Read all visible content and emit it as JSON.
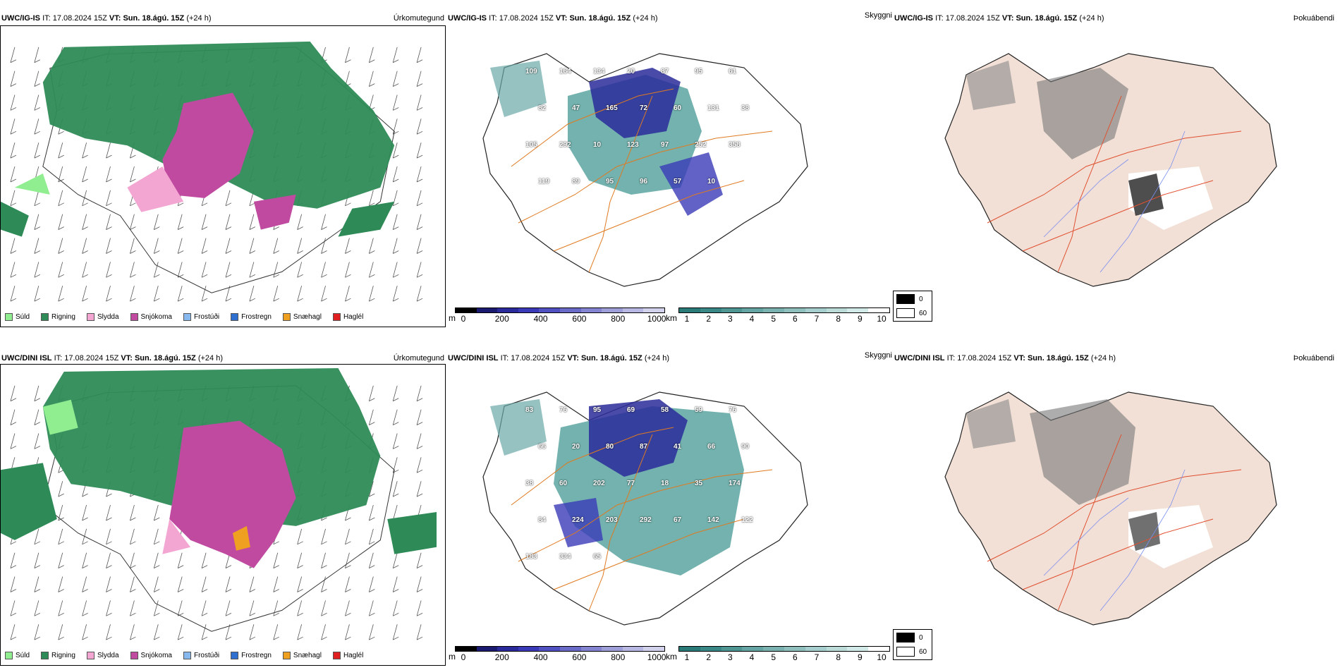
{
  "rows": [
    {
      "model": "UWC/IG-IS",
      "it_label": "IT:",
      "it_value": "17.08.2024 15Z",
      "vt_label": "VT:",
      "vt_value": "Sun. 18.ágú. 15Z",
      "lead": "(+24 h)",
      "labels_visibility": [
        "109",
        "164",
        "134",
        "20",
        "87",
        "95",
        "61",
        "82",
        "47",
        "165",
        "72",
        "60",
        "131",
        "38",
        "105",
        "292",
        "10",
        "123",
        "97",
        "252",
        "358",
        "119",
        "89",
        "95",
        "96",
        "57",
        "10"
      ]
    },
    {
      "model": "UWC/DINI ISL",
      "it_label": "IT:",
      "it_value": "17.08.2024 15Z",
      "vt_label": "VT:",
      "vt_value": "Sun. 18.ágú. 15Z",
      "lead": "(+24 h)",
      "labels_visibility": [
        "83",
        "76",
        "95",
        "69",
        "58",
        "59",
        "76",
        "66",
        "20",
        "80",
        "87",
        "41",
        "66",
        "90",
        "38",
        "60",
        "202",
        "77",
        "18",
        "35",
        "174",
        "84",
        "224",
        "203",
        "292",
        "67",
        "142",
        "122",
        "183",
        "334",
        "65"
      ]
    }
  ],
  "panel_titles": {
    "precip": "Úrkomutegund",
    "visibility": "Skyggni",
    "fog": "Þokuábendi"
  },
  "precip_legend": [
    {
      "label": "Súld",
      "color": "#90ee90"
    },
    {
      "label": "Rigning",
      "color": "#2e8b57"
    },
    {
      "label": "Slydda",
      "color": "#f4a6d2"
    },
    {
      "label": "Snjókoma",
      "color": "#c04aa0"
    },
    {
      "label": "Frostúði",
      "color": "#87b8ee"
    },
    {
      "label": "Frostregn",
      "color": "#2e6fd0"
    },
    {
      "label": "Snæhagl",
      "color": "#f0a020"
    },
    {
      "label": "Haglél",
      "color": "#e02020"
    }
  ],
  "visibility_bar_m": {
    "unit": "m",
    "ticks": [
      "0",
      "200",
      "400",
      "600",
      "800",
      "1000"
    ],
    "colors": [
      "#000000",
      "#1a1a70",
      "#2a2a9a",
      "#3a3ab8",
      "#5050c0",
      "#6a6ac8",
      "#8484d0",
      "#9e9ed8",
      "#b8b8e2",
      "#d2d2ec"
    ]
  },
  "visibility_bar_km": {
    "unit": "km",
    "ticks": [
      "1",
      "2",
      "3",
      "4",
      "5",
      "6",
      "7",
      "8",
      "9",
      "10"
    ],
    "colors": [
      "#2a7a78",
      "#3a8886",
      "#4e9694",
      "#64a4a2",
      "#7ab2b0",
      "#90c0be",
      "#a6cecc",
      "#bcdcda",
      "#d2eae8",
      "#ffffff"
    ]
  },
  "cloud_legend": {
    "low": "0",
    "high": "60",
    "low_color": "#000000",
    "high_color": "#ffffff"
  }
}
